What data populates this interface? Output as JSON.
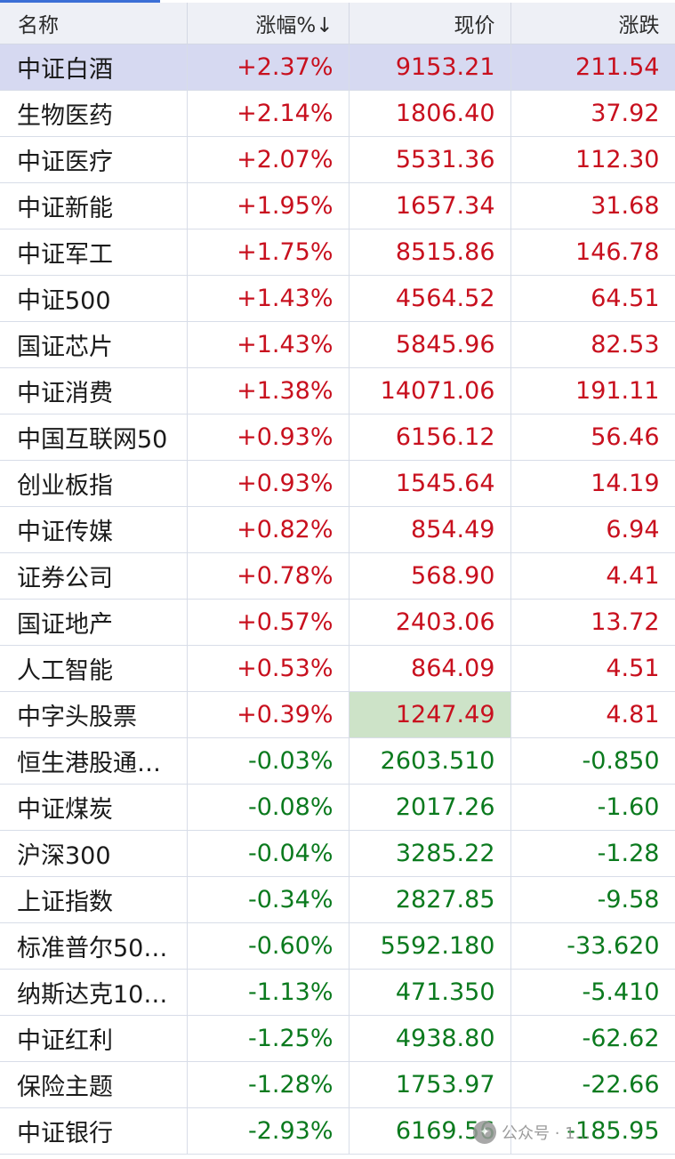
{
  "table": {
    "headers": {
      "name": "名称",
      "pct": "涨幅%↓",
      "price": "现价",
      "change": "涨跌"
    },
    "selected_row": 0,
    "rows": [
      {
        "name": "中证白酒",
        "pct": "+2.37%",
        "price": "9153.21",
        "change": "211.54",
        "trend": "up"
      },
      {
        "name": "生物医药",
        "pct": "+2.14%",
        "price": "1806.40",
        "change": "37.92",
        "trend": "up"
      },
      {
        "name": "中证医疗",
        "pct": "+2.07%",
        "price": "5531.36",
        "change": "112.30",
        "trend": "up"
      },
      {
        "name": "中证新能",
        "pct": "+1.95%",
        "price": "1657.34",
        "change": "31.68",
        "trend": "up"
      },
      {
        "name": "中证军工",
        "pct": "+1.75%",
        "price": "8515.86",
        "change": "146.78",
        "trend": "up"
      },
      {
        "name": "中证500",
        "pct": "+1.43%",
        "price": "4564.52",
        "change": "64.51",
        "trend": "up"
      },
      {
        "name": "国证芯片",
        "pct": "+1.43%",
        "price": "5845.96",
        "change": "82.53",
        "trend": "up"
      },
      {
        "name": "中证消费",
        "pct": "+1.38%",
        "price": "14071.06",
        "change": "191.11",
        "trend": "up"
      },
      {
        "name": "中国互联网50",
        "pct": "+0.93%",
        "price": "6156.12",
        "change": "56.46",
        "trend": "up"
      },
      {
        "name": "创业板指",
        "pct": "+0.93%",
        "price": "1545.64",
        "change": "14.19",
        "trend": "up"
      },
      {
        "name": "中证传媒",
        "pct": "+0.82%",
        "price": "854.49",
        "change": "6.94",
        "trend": "up"
      },
      {
        "name": "证券公司",
        "pct": "+0.78%",
        "price": "568.90",
        "change": "4.41",
        "trend": "up"
      },
      {
        "name": "国证地产",
        "pct": "+0.57%",
        "price": "2403.06",
        "change": "13.72",
        "trend": "up"
      },
      {
        "name": "人工智能",
        "pct": "+0.53%",
        "price": "864.09",
        "change": "4.51",
        "trend": "up"
      },
      {
        "name": "中字头股票",
        "pct": "+0.39%",
        "price": "1247.49",
        "change": "4.81",
        "trend": "up",
        "flash": true
      },
      {
        "name": "恒生港股通…",
        "pct": "-0.03%",
        "price": "2603.510",
        "change": "-0.850",
        "trend": "down"
      },
      {
        "name": "中证煤炭",
        "pct": "-0.08%",
        "price": "2017.26",
        "change": "-1.60",
        "trend": "down"
      },
      {
        "name": "沪深300",
        "pct": "-0.04%",
        "price": "3285.22",
        "change": "-1.28",
        "trend": "down"
      },
      {
        "name": "上证指数",
        "pct": "-0.34%",
        "price": "2827.85",
        "change": "-9.58",
        "trend": "down"
      },
      {
        "name": "标准普尔500…",
        "pct": "-0.60%",
        "price": "5592.180",
        "change": "-33.620",
        "trend": "down"
      },
      {
        "name": "纳斯达克100…",
        "pct": "-1.13%",
        "price": "471.350",
        "change": "-5.410",
        "trend": "down"
      },
      {
        "name": "中证红利",
        "pct": "-1.25%",
        "price": "4938.80",
        "change": "-62.62",
        "trend": "down"
      },
      {
        "name": "保险主题",
        "pct": "-1.28%",
        "price": "1753.97",
        "change": "-22.66",
        "trend": "down"
      },
      {
        "name": "中证银行",
        "pct": "-2.93%",
        "price": "6169.56",
        "change": "-185.95",
        "trend": "down"
      }
    ]
  },
  "colors": {
    "up": "#c8101e",
    "down": "#0b7a1e",
    "selected_row_bg": "#d6d9f1",
    "flash_bg": "#cde3c8"
  },
  "watermark": {
    "icon": "wechat-icon",
    "text": "公众号 · 1..."
  }
}
